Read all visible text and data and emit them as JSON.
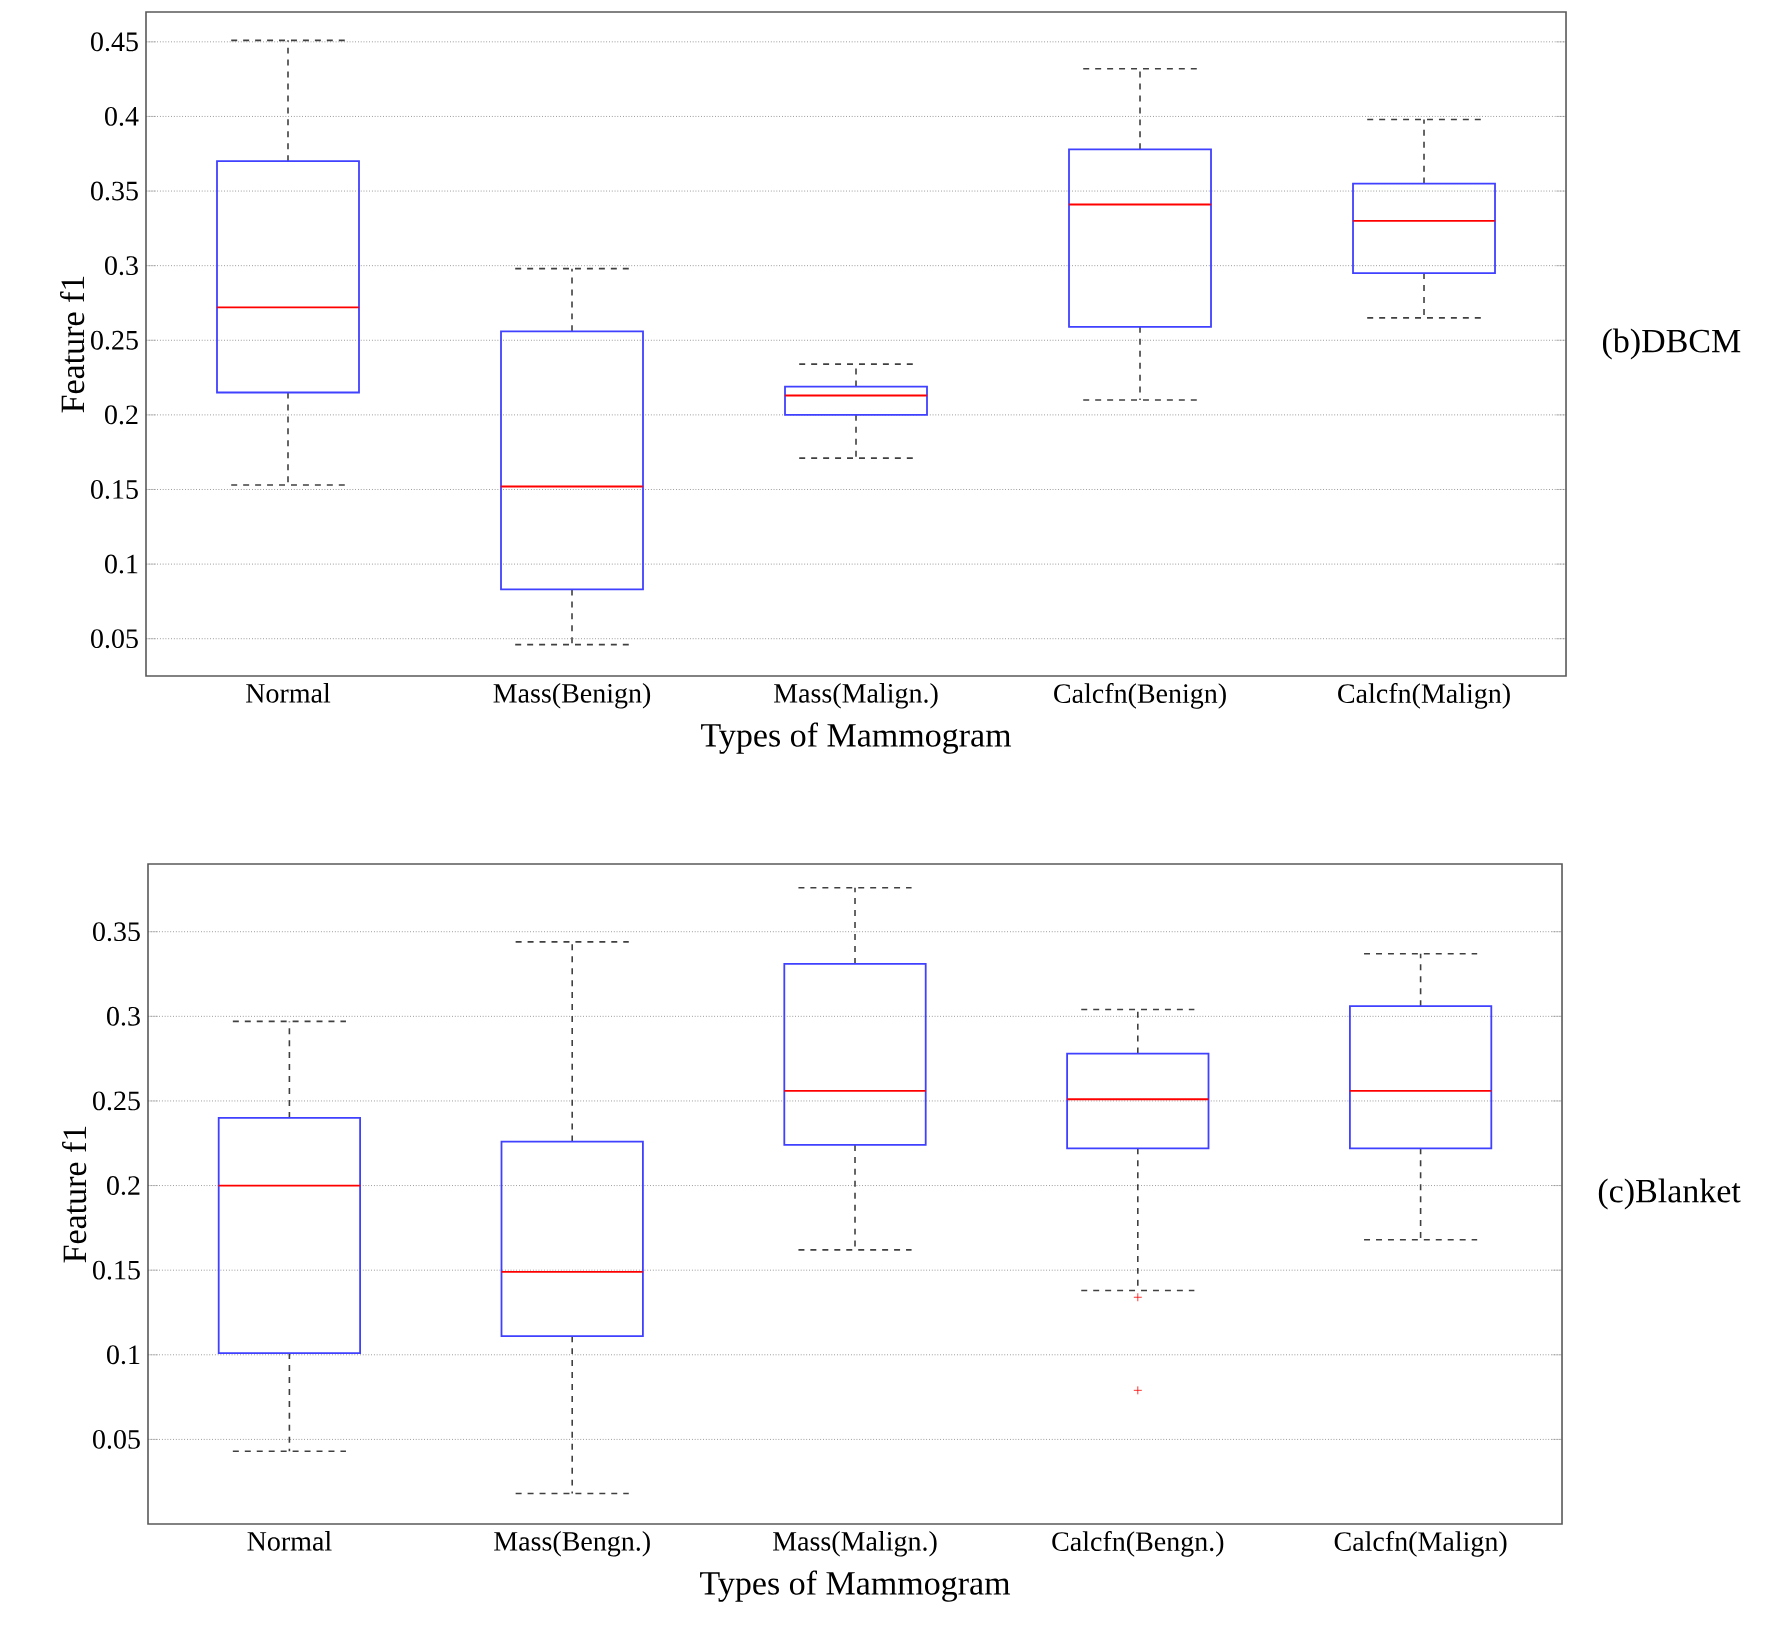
{
  "chart_data": [
    {
      "type": "box",
      "categories": [
        "Normal",
        "Mass(Benign)",
        "Mass(Malign.)",
        "Calcfn(Benign)",
        "Calcfn(Malign)"
      ],
      "xlabel": "Types of Mammogram",
      "ylabel": "Feature f1",
      "ylim": [
        0.025,
        0.47
      ],
      "yticks": [
        0.05,
        0.1,
        0.15,
        0.2,
        0.25,
        0.3,
        0.35,
        0.4,
        0.45
      ],
      "grid": "y",
      "annotations": [
        "(b)DBCM"
      ],
      "boxes": [
        {
          "low": 0.153,
          "q1": 0.215,
          "median": 0.272,
          "q3": 0.37,
          "high": 0.451
        },
        {
          "low": 0.046,
          "q1": 0.083,
          "median": 0.152,
          "q3": 0.256,
          "high": 0.298
        },
        {
          "low": 0.171,
          "q1": 0.2,
          "median": 0.213,
          "q3": 0.219,
          "high": 0.234
        },
        {
          "low": 0.21,
          "q1": 0.259,
          "median": 0.341,
          "q3": 0.378,
          "high": 0.432
        },
        {
          "low": 0.265,
          "q1": 0.295,
          "median": 0.33,
          "q3": 0.355,
          "high": 0.398
        }
      ]
    },
    {
      "type": "box",
      "categories": [
        "Normal",
        "Mass(Bengn.)",
        "Mass(Malign.)",
        "Calcfn(Bengn.)",
        "Calcfn(Malign)"
      ],
      "xlabel": "Types of Mammogram",
      "ylabel": "Feature f1",
      "ylim": [
        0,
        0.39
      ],
      "yticks": [
        0.05,
        0.1,
        0.15,
        0.2,
        0.25,
        0.3,
        0.35
      ],
      "grid": "y",
      "annotations": [
        "(c)Blanket"
      ],
      "boxes": [
        {
          "low": 0.043,
          "q1": 0.101,
          "median": 0.2,
          "q3": 0.24,
          "high": 0.297
        },
        {
          "low": 0.018,
          "q1": 0.111,
          "median": 0.149,
          "q3": 0.226,
          "high": 0.344
        },
        {
          "low": 0.162,
          "q1": 0.224,
          "median": 0.256,
          "q3": 0.331,
          "high": 0.376
        },
        {
          "low": 0.138,
          "q1": 0.222,
          "median": 0.251,
          "q3": 0.278,
          "high": 0.304,
          "outliers": [
            0.134,
            0.079
          ]
        },
        {
          "low": 0.168,
          "q1": 0.222,
          "median": 0.256,
          "q3": 0.306,
          "high": 0.337
        }
      ]
    }
  ]
}
